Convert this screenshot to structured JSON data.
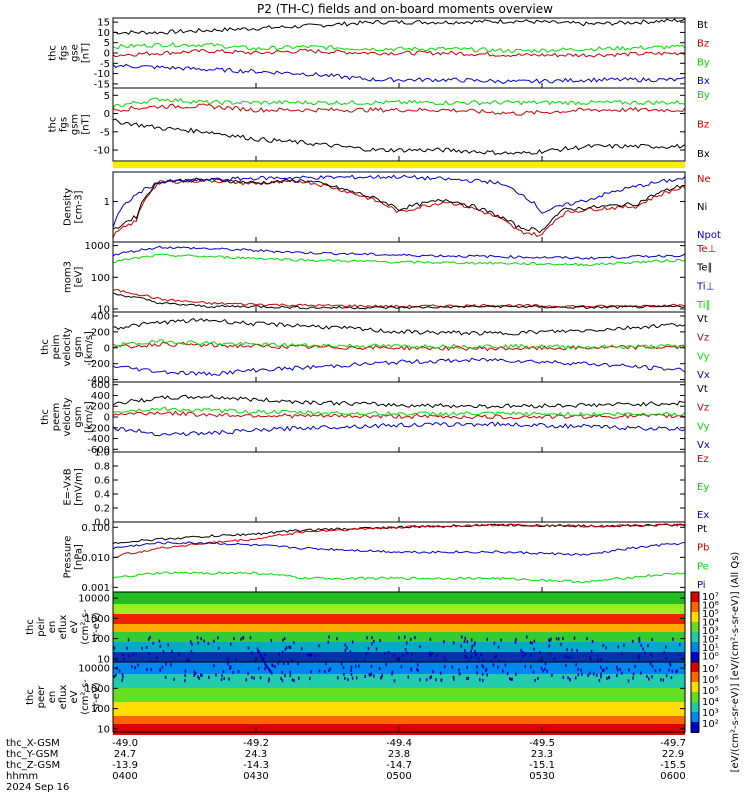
{
  "title": "P2 (TH-C) fields and on-board moments overview",
  "colors": {
    "black": "#000000",
    "red": "#cc0000",
    "green": "#00dd00",
    "blue": "#0000cc",
    "yellow": "#ffee00"
  },
  "ephemeris": {
    "labels": [
      "thc_X-GSM",
      "thc_Y-GSM",
      "thc_Z-GSM",
      "hhmm",
      "2024 Sep 16"
    ],
    "columns": [
      [
        "-49.0",
        "24.7",
        "-13.9",
        "0400"
      ],
      [
        "-49.2",
        "24.3",
        "-14.3",
        "0430"
      ],
      [
        "-49.4",
        "23.8",
        "-14.7",
        "0500"
      ],
      [
        "-49.5",
        "23.3",
        "-15.1",
        "0530"
      ],
      [
        "-49.7",
        "22.9",
        "-15.5",
        "0600"
      ]
    ]
  },
  "colorbar": {
    "label": "[eV/(cm²-s-sr-eV)] [eV/(cm²-s-sr-eV)] (All Qs)",
    "ticks_top": [
      "10⁷",
      "10⁶",
      "10⁵",
      "10⁴",
      "10³",
      "10²",
      "10¹",
      "10⁰"
    ],
    "ticks_bottom": [
      "10⁷",
      "10⁶",
      "10⁵",
      "10⁴",
      "10³",
      "10²"
    ]
  },
  "chart_data": [
    {
      "type": "line",
      "id": "fgs_gse",
      "ylabel": [
        "thc",
        "fgs",
        "gse",
        "[nT]"
      ],
      "ylim": [
        -17,
        17
      ],
      "yticks": [
        "15",
        "10",
        "5",
        "0",
        "-5",
        "-10",
        "-15"
      ],
      "yticks_vals": [
        15,
        10,
        5,
        0,
        -5,
        -10,
        -15
      ],
      "log": false,
      "series": [
        {
          "name": "Bt",
          "color": "black",
          "x": [
            0,
            10,
            20,
            30,
            40,
            55,
            70,
            85,
            100,
            120
          ],
          "y": [
            10,
            10,
            11,
            12,
            13,
            15,
            15,
            15.5,
            14,
            16
          ]
        },
        {
          "name": "Bz",
          "color": "red",
          "x": [
            0,
            10,
            20,
            30,
            40,
            55,
            70,
            85,
            100,
            120
          ],
          "y": [
            -1,
            0,
            1,
            0,
            1,
            0,
            0,
            -1,
            -1,
            0
          ]
        },
        {
          "name": "By",
          "color": "green",
          "x": [
            0,
            10,
            20,
            30,
            40,
            55,
            70,
            85,
            100,
            120
          ],
          "y": [
            3,
            4,
            4,
            2,
            3,
            2,
            2,
            1,
            2,
            3
          ]
        },
        {
          "name": "Bx",
          "color": "blue",
          "x": [
            0,
            10,
            20,
            30,
            40,
            55,
            70,
            85,
            100,
            120
          ],
          "y": [
            -6,
            -7,
            -8,
            -9,
            -10,
            -13,
            -13,
            -14,
            -13,
            -13
          ]
        }
      ]
    },
    {
      "type": "line",
      "id": "fgs_gsm",
      "ylabel": [
        "thc",
        "fgs",
        "gsm",
        "[nT]"
      ],
      "ylim": [
        -13,
        7
      ],
      "yticks": [
        "5",
        "0",
        "-5",
        "-10"
      ],
      "yticks_vals": [
        5,
        0,
        -5,
        -10
      ],
      "log": false,
      "series": [
        {
          "name": "By",
          "color": "green",
          "x": [
            0,
            10,
            20,
            30,
            40,
            55,
            70,
            85,
            100,
            120
          ],
          "y": [
            2,
            4,
            3,
            3,
            3,
            3,
            3,
            3,
            3,
            3
          ]
        },
        {
          "name": "Bz",
          "color": "red",
          "x": [
            0,
            10,
            20,
            30,
            40,
            55,
            70,
            85,
            100,
            120
          ],
          "y": [
            1,
            2,
            2,
            1,
            1,
            1,
            1,
            0,
            1,
            1
          ]
        },
        {
          "name": "Bx",
          "color": "black",
          "x": [
            0,
            10,
            20,
            30,
            40,
            55,
            70,
            85,
            100,
            120
          ],
          "y": [
            -2,
            -4,
            -5,
            -7,
            -8,
            -10,
            -10,
            -11,
            -9,
            -9
          ]
        }
      ]
    },
    {
      "type": "line",
      "id": "density",
      "ylabel": [
        "Density",
        "[cm-3]"
      ],
      "ylim": [
        0.15,
        4
      ],
      "yticks": [
        "1"
      ],
      "yticks_vals": [
        1
      ],
      "log": true,
      "series": [
        {
          "name": "Ne",
          "color": "red",
          "x": [
            0,
            5,
            10,
            20,
            30,
            40,
            50,
            60,
            70,
            80,
            85,
            90,
            95,
            100,
            110,
            120
          ],
          "y": [
            0.2,
            0.4,
            2.5,
            2.7,
            2.3,
            2.6,
            1.5,
            0.6,
            1,
            0.5,
            0.25,
            0.2,
            0.6,
            0.7,
            0.8,
            2
          ]
        },
        {
          "name": "Ni",
          "color": "black",
          "x": [
            0,
            5,
            10,
            20,
            30,
            40,
            50,
            60,
            70,
            80,
            85,
            90,
            95,
            100,
            110,
            120
          ],
          "y": [
            0.25,
            0.5,
            2.6,
            2.8,
            2.4,
            2.7,
            1.6,
            0.7,
            1.1,
            0.55,
            0.3,
            0.25,
            0.7,
            0.75,
            0.9,
            2.2
          ]
        },
        {
          "name": "Npot",
          "color": "blue",
          "x": [
            0,
            10,
            30,
            60,
            80,
            90,
            100,
            120
          ],
          "y": [
            0.3,
            2.5,
            3,
            3.2,
            2.5,
            0.6,
            1.1,
            3
          ]
        }
      ]
    },
    {
      "type": "line",
      "id": "temp",
      "ylabel": [
        "mom3",
        "[eV]"
      ],
      "ylim": [
        8,
        1300
      ],
      "yticks": [
        "1000",
        "100",
        "10"
      ],
      "yticks_vals": [
        1000,
        100,
        10
      ],
      "log": true,
      "series": [
        {
          "name": "Te⊥",
          "color": "red",
          "x": [
            0,
            10,
            20,
            30,
            40,
            60,
            80,
            100,
            120
          ],
          "y": [
            40,
            20,
            15,
            14,
            13,
            12,
            13,
            12,
            13
          ]
        },
        {
          "name": "Te∥",
          "color": "black",
          "x": [
            0,
            10,
            20,
            30,
            40,
            60,
            80,
            100,
            120
          ],
          "y": [
            30,
            15,
            12,
            12,
            11,
            11,
            12,
            11,
            12
          ]
        },
        {
          "name": "Ti⊥",
          "color": "blue",
          "x": [
            0,
            10,
            20,
            30,
            40,
            60,
            80,
            100,
            120
          ],
          "y": [
            500,
            900,
            800,
            700,
            600,
            500,
            450,
            400,
            500
          ]
        },
        {
          "name": "Ti∥",
          "color": "green",
          "x": [
            0,
            10,
            20,
            30,
            40,
            60,
            80,
            100,
            120
          ],
          "y": [
            300,
            500,
            450,
            400,
            350,
            300,
            280,
            250,
            350
          ]
        }
      ]
    },
    {
      "type": "line",
      "id": "peim",
      "ylabel": [
        "thc",
        "peim",
        "velocity",
        "gsm",
        "[km/s]"
      ],
      "ylim": [
        -430,
        450
      ],
      "yticks": [
        "400",
        "200",
        "0",
        "-200",
        "-400"
      ],
      "yticks_vals": [
        400,
        200,
        0,
        -200,
        -400
      ],
      "log": false,
      "series": [
        {
          "name": "Vt",
          "color": "black",
          "x": [
            0,
            10,
            20,
            30,
            40,
            60,
            80,
            100,
            120
          ],
          "y": [
            250,
            320,
            350,
            300,
            280,
            200,
            180,
            220,
            300
          ]
        },
        {
          "name": "Vz",
          "color": "red",
          "x": [
            0,
            10,
            20,
            30,
            40,
            60,
            80,
            100,
            120
          ],
          "y": [
            0,
            50,
            30,
            20,
            10,
            0,
            -10,
            0,
            10
          ]
        },
        {
          "name": "Vy",
          "color": "green",
          "x": [
            0,
            10,
            20,
            30,
            40,
            60,
            80,
            100,
            120
          ],
          "y": [
            30,
            80,
            60,
            40,
            30,
            20,
            20,
            10,
            20
          ]
        },
        {
          "name": "Vx",
          "color": "blue",
          "x": [
            0,
            10,
            20,
            30,
            40,
            60,
            80,
            100,
            120
          ],
          "y": [
            -230,
            -300,
            -330,
            -280,
            -250,
            -180,
            -150,
            -200,
            -280
          ]
        }
      ]
    },
    {
      "type": "line",
      "id": "peem",
      "ylabel": [
        "thc",
        "peem",
        "velocity",
        "gsm",
        "[km/s]"
      ],
      "ylim": [
        -650,
        650
      ],
      "yticks": [
        "600",
        "400",
        "200",
        "0",
        "-200",
        "-400",
        "-600"
      ],
      "yticks_vals": [
        600,
        400,
        200,
        0,
        -200,
        -400,
        -600
      ],
      "log": false,
      "series": [
        {
          "name": "Vt",
          "color": "black",
          "x": [
            0,
            10,
            20,
            30,
            40,
            60,
            80,
            100,
            120
          ],
          "y": [
            250,
            350,
            380,
            320,
            280,
            220,
            200,
            220,
            260
          ]
        },
        {
          "name": "Vz",
          "color": "red",
          "x": [
            0,
            10,
            20,
            30,
            40,
            60,
            80,
            100,
            120
          ],
          "y": [
            50,
            80,
            40,
            30,
            20,
            10,
            0,
            10,
            20
          ]
        },
        {
          "name": "Vy",
          "color": "green",
          "x": [
            0,
            10,
            20,
            30,
            40,
            60,
            80,
            100,
            120
          ],
          "y": [
            100,
            150,
            120,
            100,
            80,
            60,
            60,
            50,
            60
          ]
        },
        {
          "name": "Vx",
          "color": "blue",
          "x": [
            0,
            10,
            20,
            30,
            40,
            60,
            80,
            100,
            120
          ],
          "y": [
            -200,
            -320,
            -300,
            -250,
            -200,
            -150,
            -130,
            -180,
            -230
          ]
        }
      ]
    },
    {
      "type": "line",
      "id": "efield",
      "ylabel": [
        "E=-VxB",
        "[mV/m]"
      ],
      "ylim": [
        0,
        1
      ],
      "yticks": [
        "1.0",
        "0.8",
        "0.6",
        "0.4",
        "0.2",
        "0.0"
      ],
      "yticks_vals": [
        1,
        0.8,
        0.6,
        0.4,
        0.2,
        0
      ],
      "log": false,
      "series": [
        {
          "name": "Ez",
          "color": "red",
          "x": [],
          "y": []
        },
        {
          "name": "Ey",
          "color": "green",
          "x": [],
          "y": []
        },
        {
          "name": "Ex",
          "color": "blue",
          "x": [],
          "y": []
        }
      ]
    },
    {
      "type": "line",
      "id": "pressure",
      "ylabel": [
        "Pressure",
        "[nPa]"
      ],
      "ylim": [
        0.0007,
        0.15
      ],
      "yticks": [
        "0.100",
        "0.010",
        "0.001"
      ],
      "yticks_vals": [
        0.1,
        0.01,
        0.001
      ],
      "log": true,
      "series": [
        {
          "name": "Pt",
          "color": "black",
          "x": [
            0,
            10,
            20,
            30,
            40,
            60,
            80,
            100,
            120
          ],
          "y": [
            0.03,
            0.04,
            0.05,
            0.06,
            0.08,
            0.1,
            0.12,
            0.11,
            0.12
          ]
        },
        {
          "name": "Pb",
          "color": "red",
          "x": [
            0,
            10,
            20,
            30,
            40,
            60,
            80,
            100,
            120
          ],
          "y": [
            0.01,
            0.02,
            0.03,
            0.04,
            0.07,
            0.1,
            0.12,
            0.11,
            0.12
          ]
        },
        {
          "name": "Pe",
          "color": "green",
          "x": [
            0,
            10,
            20,
            30,
            40,
            60,
            80,
            100,
            120
          ],
          "y": [
            0.002,
            0.003,
            0.003,
            0.003,
            0.002,
            0.002,
            0.002,
            0.0015,
            0.003
          ]
        },
        {
          "name": "Pi",
          "color": "blue",
          "x": [
            0,
            10,
            20,
            30,
            40,
            60,
            80,
            100,
            120
          ],
          "y": [
            0.02,
            0.03,
            0.03,
            0.025,
            0.02,
            0.015,
            0.015,
            0.012,
            0.03
          ]
        }
      ]
    },
    {
      "type": "heatmap",
      "id": "peir",
      "ylabel": [
        "thc",
        "peir",
        "en",
        "eflux",
        "eV",
        "(cm²-s-",
        "sr-eV)"
      ],
      "ylim": [
        7,
        20000
      ],
      "yticks": [
        "10000",
        "1000",
        "100",
        "10"
      ],
      "yticks_vals": [
        10000,
        1000,
        100,
        10
      ],
      "log": true
    },
    {
      "type": "heatmap",
      "id": "peer",
      "ylabel": [
        "thc",
        "peer",
        "en",
        "eflux",
        "eV",
        "(cm²-s-",
        "sr-eV)"
      ],
      "ylim": [
        7,
        20000
      ],
      "yticks": [
        "10000",
        "1000",
        "100",
        "10"
      ],
      "yticks_vals": [
        10000,
        1000,
        100,
        10
      ],
      "log": true
    }
  ]
}
